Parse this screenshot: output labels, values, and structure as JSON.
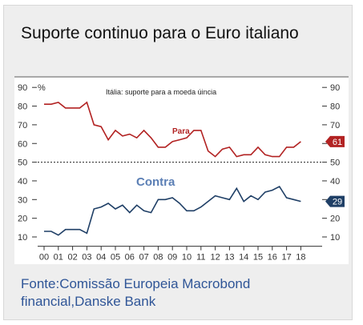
{
  "title": "Suporte continuo para o Euro italiano",
  "source": {
    "line1": "Fonte:Comissão Europeia Macrobond",
    "line2": "financial,Danske Bank"
  },
  "chart_data": {
    "type": "line",
    "subtitle": "Itália: suporte para a moeda úincia",
    "y_unit": "%",
    "ylim": [
      5,
      90
    ],
    "yticks": [
      10,
      20,
      30,
      40,
      50,
      60,
      70,
      80,
      90
    ],
    "reference_line": 50,
    "grid": false,
    "x_labels": [
      "00",
      "01",
      "02",
      "03",
      "04",
      "05",
      "06",
      "07",
      "08",
      "09",
      "10",
      "11",
      "12",
      "13",
      "14",
      "15",
      "16",
      "17",
      "18"
    ],
    "x": [
      2000.0,
      2000.5,
      2001.0,
      2001.5,
      2002.0,
      2002.5,
      2003.0,
      2003.5,
      2004.0,
      2004.5,
      2005.0,
      2005.5,
      2006.0,
      2006.5,
      2007.0,
      2007.5,
      2008.0,
      2008.5,
      2009.0,
      2009.5,
      2010.0,
      2010.5,
      2011.0,
      2011.5,
      2012.0,
      2012.5,
      2013.0,
      2013.5,
      2014.0,
      2014.5,
      2015.0,
      2015.5,
      2016.0,
      2016.5,
      2017.0,
      2017.5,
      2018.0
    ],
    "series": [
      {
        "name": "Para",
        "color": "#b22222",
        "end_label": "61",
        "values": [
          81,
          81,
          82,
          79,
          79,
          79,
          82,
          70,
          69,
          62,
          67,
          64,
          65,
          63,
          67,
          63,
          58,
          58,
          61,
          62,
          63,
          67,
          67,
          56,
          53,
          57,
          58,
          53,
          54,
          54,
          58,
          54,
          53,
          53,
          58,
          58,
          61
        ]
      },
      {
        "name": "Contra",
        "color": "#1f3f66",
        "end_label": "29",
        "values": [
          13,
          13,
          11,
          14,
          14,
          14,
          12,
          25,
          26,
          28,
          25,
          27,
          23,
          27,
          24,
          23,
          30,
          30,
          31,
          28,
          24,
          24,
          26,
          29,
          32,
          31,
          30,
          36,
          29,
          32,
          30,
          34,
          35,
          37,
          31,
          30,
          29
        ]
      }
    ]
  }
}
